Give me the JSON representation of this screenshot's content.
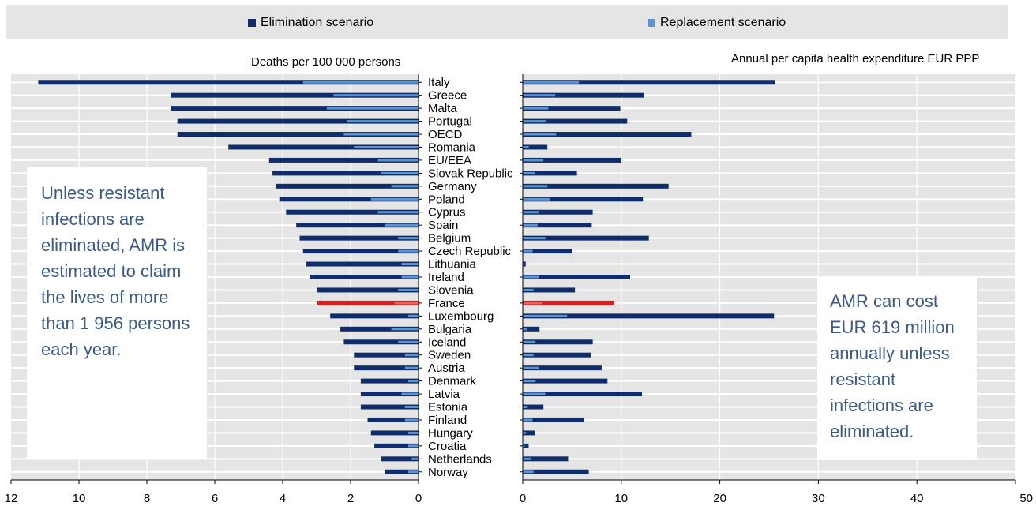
{
  "legend": {
    "elimination": {
      "label": "Elimination scenario",
      "color": "#0f2d6b"
    },
    "replacement": {
      "label": "Replacement scenario",
      "color": "#5b94d1"
    }
  },
  "highlight_color": "#e01c1c",
  "highlight_light_color": "#f06262",
  "callouts": {
    "left": "Unless resistant infections are eliminated, AMR is estimated to claim the lives of more than 1 956 persons each year.",
    "right": "AMR can cost EUR 619 million annually unless resistant infections are eliminated."
  },
  "chart_data": [
    {
      "type": "bar",
      "orientation": "horizontal",
      "title": "Deaths per 100 000 persons",
      "xlim": [
        0,
        12
      ],
      "x_reversed": true,
      "xticks": [
        12,
        10,
        8,
        6,
        4,
        2,
        0
      ],
      "grid": true,
      "legend_position": "top",
      "categories": [
        "Italy",
        "Greece",
        "Malta",
        "Portugal",
        "OECD",
        "Romania",
        "EU/EEA",
        "Slovak Republic",
        "Germany",
        "Poland",
        "Cyprus",
        "Spain",
        "Belgium",
        "Czech Republic",
        "Lithuania",
        "Ireland",
        "Slovenia",
        "France",
        "Luxembourg",
        "Bulgaria",
        "Iceland",
        "Sweden",
        "Austria",
        "Denmark",
        "Latvia",
        "Estonia",
        "Finland",
        "Hungary",
        "Croatia",
        "Netherlands",
        "Norway"
      ],
      "highlight": "France",
      "series": [
        {
          "name": "Elimination scenario",
          "values": [
            11.2,
            7.3,
            7.3,
            7.1,
            7.1,
            5.6,
            4.4,
            4.3,
            4.2,
            4.1,
            3.9,
            3.6,
            3.5,
            3.4,
            3.3,
            3.2,
            3.0,
            3.0,
            2.6,
            2.3,
            2.2,
            1.9,
            1.9,
            1.7,
            1.7,
            1.7,
            1.5,
            1.4,
            1.3,
            1.1,
            1.0
          ]
        },
        {
          "name": "Replacement scenario",
          "values": [
            3.4,
            2.5,
            2.7,
            2.1,
            2.2,
            1.9,
            1.2,
            1.1,
            0.8,
            1.4,
            1.2,
            1.0,
            0.6,
            0.6,
            0.5,
            0.5,
            0.6,
            0.7,
            0.3,
            0.8,
            0.6,
            0.4,
            0.4,
            0.3,
            0.5,
            0.4,
            0.4,
            0.3,
            0.3,
            0.2,
            0.3
          ]
        }
      ]
    },
    {
      "type": "bar",
      "orientation": "horizontal",
      "title": "Annual per capita health expenditure EUR PPP",
      "xlim": [
        0,
        50
      ],
      "xticks": [
        0,
        10,
        20,
        30,
        40,
        50
      ],
      "grid": true,
      "categories": [
        "Italy",
        "Greece",
        "Malta",
        "Portugal",
        "OECD",
        "Romania",
        "EU/EEA",
        "Slovak Republic",
        "Germany",
        "Poland",
        "Cyprus",
        "Spain",
        "Belgium",
        "Czech Republic",
        "Lithuania",
        "Ireland",
        "Slovenia",
        "France",
        "Luxembourg",
        "Bulgaria",
        "Iceland",
        "Sweden",
        "Austria",
        "Denmark",
        "Latvia",
        "Estonia",
        "Finland",
        "Hungary",
        "Croatia",
        "Netherlands",
        "Norway"
      ],
      "highlight": "France",
      "series": [
        {
          "name": "Elimination scenario",
          "values": [
            25.6,
            12.3,
            9.9,
            10.6,
            17.1,
            2.5,
            10.0,
            5.5,
            14.8,
            12.2,
            7.1,
            7.0,
            12.8,
            5.0,
            0.3,
            10.9,
            5.3,
            9.3,
            25.5,
            1.7,
            7.1,
            6.9,
            8.0,
            8.6,
            12.1,
            2.1,
            6.2,
            1.2,
            0.6,
            4.6,
            6.7
          ]
        },
        {
          "name": "Replacement scenario",
          "values": [
            5.7,
            3.3,
            2.6,
            2.4,
            3.4,
            0.6,
            2.1,
            1.2,
            2.5,
            2.8,
            1.6,
            1.5,
            2.3,
            1.0,
            0.1,
            1.6,
            1.1,
            2.0,
            4.5,
            0.4,
            1.3,
            1.1,
            1.6,
            1.3,
            2.3,
            0.5,
            1.0,
            0.3,
            0.2,
            0.8,
            1.1
          ]
        }
      ]
    }
  ]
}
